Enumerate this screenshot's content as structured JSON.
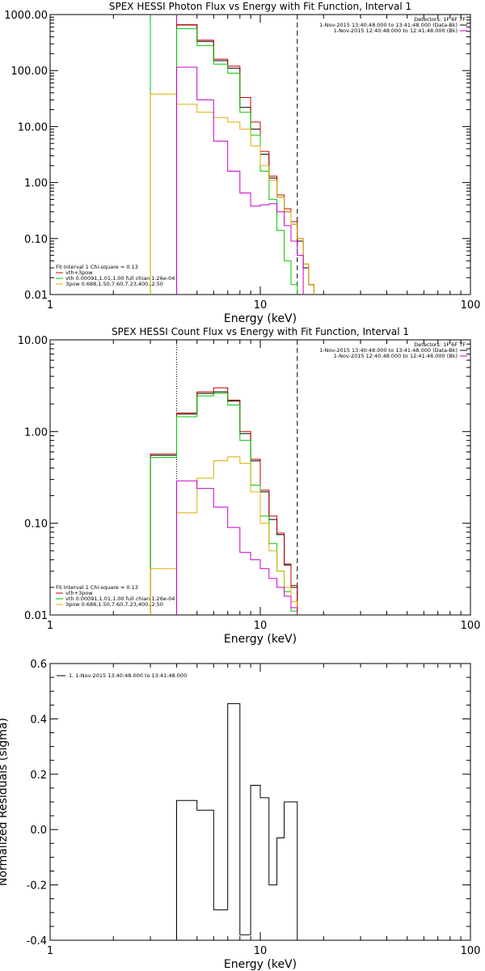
{
  "chart_data": [
    {
      "type": "line",
      "title": "SPEX HESSI Photon Flux vs Energy with Fit Function, Interval 1",
      "xlabel": "Energy (keV)",
      "ylabel": "",
      "xscale": "log",
      "yscale": "log",
      "xlim": [
        1,
        100
      ],
      "ylim": [
        0.01,
        1000
      ],
      "x_tick_labels": [
        "1",
        "10",
        "100"
      ],
      "y_tick_labels": [
        "0.01",
        "0.10",
        "1.00",
        "10.00",
        "100.00",
        "1000.00"
      ],
      "legend_top": [
        "Detectors: 1F 6F 7F",
        "1-Nov-2015 13:40:48.000 to 13:41:48.000 (Data-Bk)",
        "1-Nov-2015 12:40:48.000 to 12:41:48.000 (Bk)"
      ],
      "fit_info": [
        "Fit Interval 1    Chi-square = 0.13",
        "vth+3pow",
        "vth 0.00091,1.01,1.00  full chian 1.26e-04",
        "3pow 0.688,1.50,7.60,7.23,400.,2.50"
      ],
      "vlines": [
        {
          "x": 3.0,
          "color": "#00c800",
          "style": "solid"
        },
        {
          "x": 4.0,
          "color": "#00c800",
          "style": "solid"
        },
        {
          "x": 4.0,
          "color": "#c800c8",
          "style": "solid"
        },
        {
          "x": 15.0,
          "color": "#000000",
          "style": "dashed"
        }
      ],
      "edges": [
        3.0,
        4.0,
        5.0,
        6.0,
        7.0,
        8.0,
        9.0,
        10.0,
        11.0,
        12.0,
        13.0,
        14.0,
        15.0,
        16.0,
        17.0,
        18.0
      ],
      "series": [
        {
          "name": "Data-Bk",
          "color": "#000000",
          "values": [
            null,
            650,
            330,
            150,
            110,
            22,
            9,
            3.2,
            1.2,
            0.55,
            0.3,
            0.18,
            0.09,
            0.03,
            0.015
          ]
        },
        {
          "name": "vth+3pow",
          "color": "#c80000",
          "values": [
            null,
            660,
            350,
            160,
            120,
            33,
            12,
            3.6,
            1.3,
            0.6,
            0.34,
            0.2,
            0.1,
            0.035,
            0.015
          ]
        },
        {
          "name": "vth",
          "color": "#00c800",
          "values": [
            null,
            560,
            280,
            130,
            90,
            18,
            7,
            1.6,
            0.5,
            0.14,
            0.04,
            0.015,
            null,
            null,
            null
          ]
        },
        {
          "name": "3pow",
          "color": "#ddb000",
          "values": [
            38,
            25,
            18,
            14.5,
            12,
            9,
            4.5,
            2,
            1.1,
            0.55,
            0.3,
            0.18,
            0.1,
            0.035,
            0.015
          ]
        },
        {
          "name": "Bk",
          "color": "#c800c8",
          "values": [
            null,
            115,
            30,
            5.5,
            1.6,
            0.65,
            0.38,
            0.4,
            0.42,
            0.3,
            0.17,
            0.09,
            0.05,
            null,
            null
          ]
        }
      ]
    },
    {
      "type": "line",
      "title": "SPEX HESSI Count Flux vs Energy with Fit Function, Interval 1",
      "xlabel": "Energy (keV)",
      "ylabel": "",
      "xscale": "log",
      "yscale": "log",
      "xlim": [
        1,
        100
      ],
      "ylim": [
        0.01,
        10
      ],
      "x_tick_labels": [
        "1",
        "10",
        "100"
      ],
      "y_tick_labels": [
        "0.01",
        "0.10",
        "1.00",
        "10.00"
      ],
      "legend_top": [
        "Detectors: 1F 6F 7F",
        "1-Nov-2015 13:40:48.000 to 13:41:48.000 (Data-Bk)",
        "1-Nov-2015 12:40:48.000 to 12:41:48.000 (Bk)"
      ],
      "fit_info": [
        "Fit Interval 1    Chi-square = 0.13",
        "vth+3pow",
        "vth 0.00091,1.01,1.00  full chian 1.26e-04",
        "3pow 0.688,1.50,7.60,7.23,400.,2.50"
      ],
      "vlines": [
        {
          "x": 4.0,
          "color": "#000000",
          "style": "dotted"
        },
        {
          "x": 15.0,
          "color": "#000000",
          "style": "dashed"
        }
      ],
      "edges": [
        3.0,
        4.0,
        5.0,
        6.0,
        7.0,
        8.0,
        9.0,
        10.0,
        11.0,
        12.0,
        13.0,
        14.0,
        15.0
      ],
      "series": [
        {
          "name": "Data-Bk",
          "color": "#000000",
          "values": [
            0.55,
            1.55,
            2.6,
            2.7,
            2.15,
            0.95,
            0.48,
            0.22,
            0.11,
            0.075,
            0.035,
            0.02
          ]
        },
        {
          "name": "vth+3pow",
          "color": "#c80000",
          "values": [
            0.57,
            1.6,
            2.7,
            3.0,
            2.2,
            1.0,
            0.5,
            0.23,
            0.12,
            0.078,
            0.036,
            0.021
          ]
        },
        {
          "name": "vth",
          "color": "#00c800",
          "values": [
            0.52,
            1.45,
            2.45,
            2.6,
            1.95,
            0.8,
            0.26,
            0.12,
            0.06,
            0.03,
            0.018,
            0.011
          ]
        },
        {
          "name": "3pow",
          "color": "#ddb000",
          "values": [
            0.032,
            0.13,
            0.31,
            0.48,
            0.53,
            0.45,
            0.22,
            0.1,
            0.05,
            0.03,
            0.02,
            0.014
          ]
        },
        {
          "name": "Bk",
          "color": "#c800c8",
          "values": [
            null,
            0.29,
            0.24,
            0.15,
            0.09,
            0.048,
            0.04,
            0.032,
            0.025,
            0.02,
            0.016,
            0.012
          ]
        }
      ]
    },
    {
      "type": "line",
      "title": "",
      "xlabel": "Energy (keV)",
      "ylabel": "Normalized Residuals (sigma)",
      "xscale": "log",
      "yscale": "linear",
      "xlim": [
        1,
        100
      ],
      "ylim": [
        -0.4,
        0.6
      ],
      "x_tick_labels": [
        "1",
        "10",
        "100"
      ],
      "y_tick_labels": [
        "-0.4",
        "-0.2",
        "0.0",
        "0.2",
        "0.4",
        "0.6"
      ],
      "legend_top": [
        "1.  1-Nov-2015 13:40:48.000 to 13:41:48.000"
      ],
      "edges": [
        4.0,
        5.0,
        6.0,
        7.0,
        8.0,
        9.0,
        10.0,
        11.0,
        12.0,
        13.0,
        14.0,
        15.0
      ],
      "series": [
        {
          "name": "1.  1-Nov-2015 13:40:48.000 to 13:41:48.000",
          "color": "#000000",
          "values": [
            0.105,
            0.07,
            -0.29,
            0.455,
            -0.38,
            0.16,
            0.115,
            -0.2,
            -0.03,
            0.1,
            0.1
          ]
        }
      ]
    }
  ]
}
